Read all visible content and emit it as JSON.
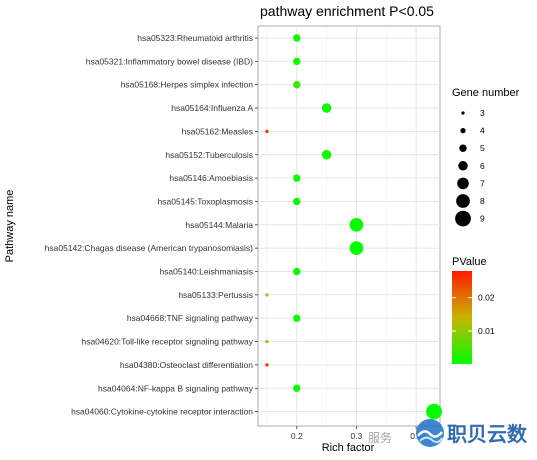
{
  "chart_data": {
    "type": "scatter",
    "title": "pathway enrichment P<0.05",
    "xlabel": "Rich factor",
    "ylabel": "Pathway name",
    "xlim": [
      0.135,
      0.44
    ],
    "xticks": [
      0.2,
      0.3,
      0.4
    ],
    "xtick_labels": [
      "0.2",
      "0.3",
      "0.4"
    ],
    "grid": true,
    "legend_placement": "right",
    "categories": [
      "hsa05323:Rheumatoid arthritis",
      "hsa05321:Inflammatory bowel disease (IBD)",
      "hsa05168:Herpes simplex infection",
      "hsa05164:Influenza A",
      "hsa05162:Measles",
      "hsa05152:Tuberculosis",
      "hsa05146:Amoebiasis",
      "hsa05145:Toxoplasmosis",
      "hsa05144:Malaria",
      "hsa05142:Chagas disease (American trypanosomiasis)",
      "hsa05140:Leishmaniasis",
      "hsa05133:Pertussis",
      "hsa04668:TNF signaling pathway",
      "hsa04620:Toll-like receptor signaling pathway",
      "hsa04380:Osteoclast differentiation",
      "hsa04064:NF-kappa B signaling pathway",
      "hsa04060:Cytokine-cytokine receptor interaction"
    ],
    "points": [
      {
        "x": 0.2,
        "gene_number": 5,
        "pvalue": 0.001
      },
      {
        "x": 0.2,
        "gene_number": 5,
        "pvalue": 0.001
      },
      {
        "x": 0.2,
        "gene_number": 5,
        "pvalue": 0.004
      },
      {
        "x": 0.25,
        "gene_number": 6,
        "pvalue": 0.001
      },
      {
        "x": 0.15,
        "gene_number": 3,
        "pvalue": 0.027
      },
      {
        "x": 0.25,
        "gene_number": 6,
        "pvalue": 0.001
      },
      {
        "x": 0.2,
        "gene_number": 5,
        "pvalue": 0.001
      },
      {
        "x": 0.2,
        "gene_number": 5,
        "pvalue": 0.001
      },
      {
        "x": 0.3,
        "gene_number": 8,
        "pvalue": 0.0005
      },
      {
        "x": 0.3,
        "gene_number": 8,
        "pvalue": 0.0005
      },
      {
        "x": 0.2,
        "gene_number": 5,
        "pvalue": 0.001
      },
      {
        "x": 0.15,
        "gene_number": 3,
        "pvalue": 0.013
      },
      {
        "x": 0.2,
        "gene_number": 5,
        "pvalue": 0.001
      },
      {
        "x": 0.15,
        "gene_number": 3,
        "pvalue": 0.016
      },
      {
        "x": 0.15,
        "gene_number": 3,
        "pvalue": 0.027
      },
      {
        "x": 0.2,
        "gene_number": 5,
        "pvalue": 0.001
      },
      {
        "x": 0.43,
        "gene_number": 9,
        "pvalue": 0.0003
      }
    ],
    "size_legend": {
      "title": "Gene number",
      "values": [
        3,
        4,
        5,
        6,
        7,
        8,
        9
      ],
      "labels": [
        "3",
        "4",
        "5",
        "6",
        "7",
        "8",
        "9"
      ]
    },
    "color_legend": {
      "title": "PValue",
      "min": 0.0001,
      "max": 0.028,
      "ticks": [
        0.01,
        0.02
      ],
      "tick_labels": [
        "0.01",
        "0.02"
      ],
      "low_color": "#00ff00",
      "mid_color": "#c8b400",
      "high_color": "#ff1a00"
    }
  },
  "colors": {
    "panel_bg": "#ffffff",
    "grid": "#e3e3e3",
    "axis": "#333333"
  },
  "watermark": {
    "text": "服务",
    "brand": "职贝云数",
    "icon": "wave-logo-icon"
  }
}
